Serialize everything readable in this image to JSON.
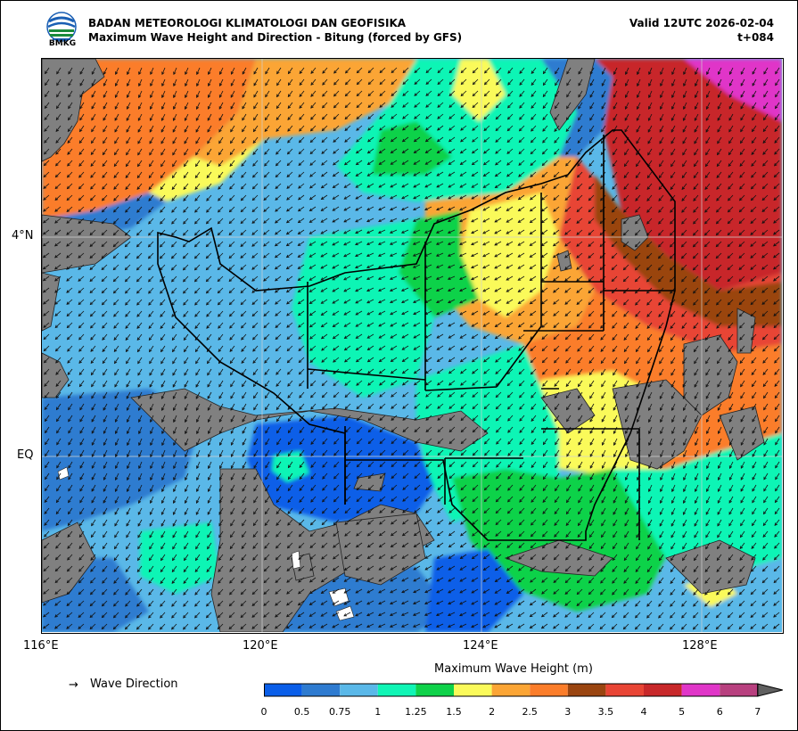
{
  "header": {
    "agency": "BADAN METEOROLOGI KLIMATOLOGI DAN GEOFISIKA",
    "product": "Maximum Wave Height and Direction - Bitung (forced by GFS)",
    "valid": "Valid 12UTC 2026-02-04",
    "lead": "t+084",
    "logo_text": "BMKG"
  },
  "axes": {
    "lat_labels": [
      "4°N",
      "EQ"
    ],
    "lon_labels": [
      "116°E",
      "120°E",
      "124°E",
      "128°E"
    ]
  },
  "legend": {
    "arrow_symbol": "→",
    "arrow_label": "Wave Direction"
  },
  "colorbar": {
    "title": "Maximum Wave Height (m)",
    "ticks": [
      "0",
      "0.5",
      "0.75",
      "1",
      "1.25",
      "1.5",
      "2",
      "2.5",
      "3",
      "3.5",
      "4",
      "5",
      "6",
      "7"
    ],
    "colors": [
      "#0a5ee8",
      "#2e7bd0",
      "#5ab8e8",
      "#10f5b5",
      "#0fd24a",
      "#fafa5a",
      "#fba535",
      "#fb7d2a",
      "#9a4510",
      "#e84535",
      "#c8282a",
      "#e036c8",
      "#b8407f"
    ],
    "over_color": "#606060"
  },
  "map_colors": {
    "land": "#808080",
    "grid": "#d0d0d0",
    "arrow": "#111111",
    "zone_line": "#000000"
  }
}
